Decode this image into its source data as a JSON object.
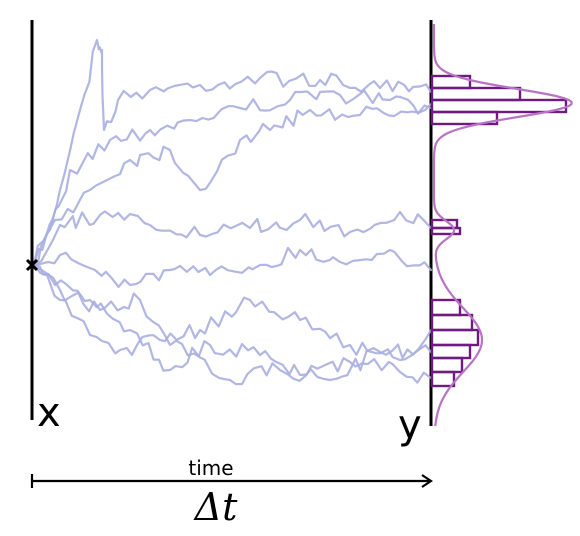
{
  "labels": {
    "start": "x",
    "end": "y",
    "time": "time",
    "delta": "Δt"
  },
  "colors": {
    "paths": "#a9aee0",
    "histogram": "#6e1a7e",
    "density": "#b874c4",
    "axes": "#000000"
  },
  "trajectories": {
    "count": 8,
    "start_marker": "x-mark-icon"
  },
  "histogram": {
    "peaks": [
      "upper",
      "middle",
      "lower"
    ]
  }
}
